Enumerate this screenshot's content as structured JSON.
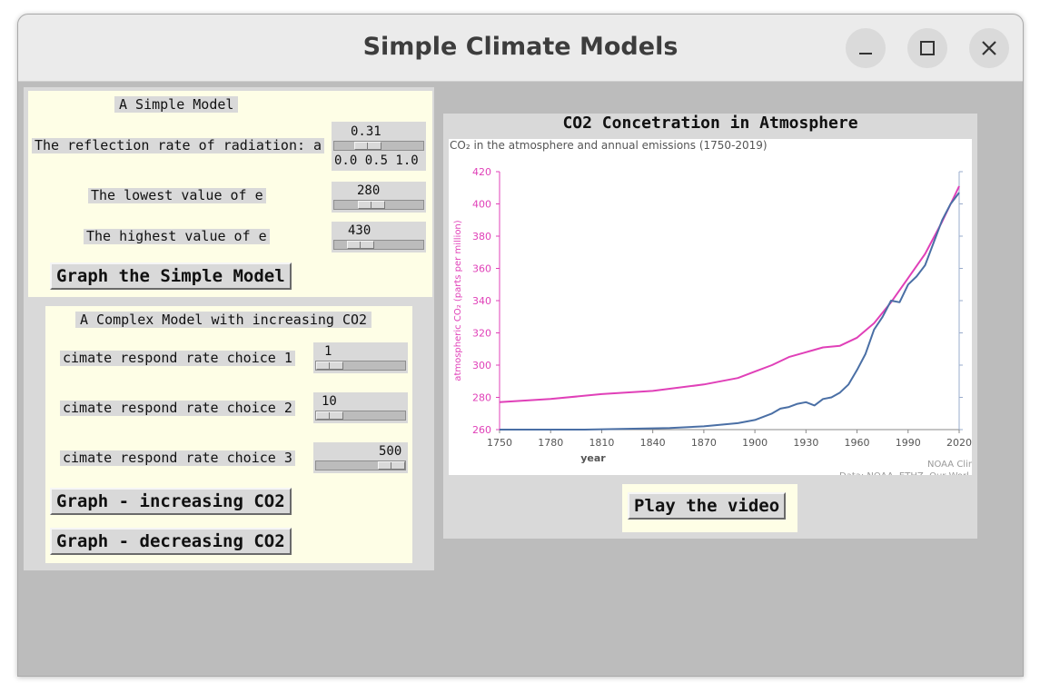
{
  "window": {
    "title": "Simple Climate Models"
  },
  "controls": {
    "minimize": "minimize-icon",
    "maximize": "maximize-icon",
    "close": "close-icon"
  },
  "simple_model": {
    "heading": "A Simple Model",
    "reflection": {
      "label": "The reflection rate of radiation: a",
      "value": "0.31",
      "ticks": "0.0 0.5 1.0",
      "fraction": 0.31
    },
    "lowest_e": {
      "label": "The lowest value of e",
      "value": "280"
    },
    "highest_e": {
      "label": "The highest value of e",
      "value": "430"
    },
    "graph_button": "Graph the Simple Model"
  },
  "complex_model": {
    "heading": "A Complex Model with increasing CO2",
    "choice1": {
      "label": "cimate respond rate choice 1",
      "value": "1"
    },
    "choice2": {
      "label": "cimate respond rate choice 2",
      "value": "10"
    },
    "choice3": {
      "label": "cimate respond rate choice 3",
      "value": "500"
    },
    "increasing_button": "Graph - increasing CO2",
    "decreasing_button": "Graph - decreasing CO2"
  },
  "co2_panel": {
    "title": "CO2 Concetration in Atmosphere",
    "play_button": "Play the video"
  },
  "chart_data": {
    "type": "line",
    "title": "CO₂ in the atmosphere and annual emissions (1750-2019)",
    "xlabel": "year",
    "ylabel": "atmospheric CO₂ (parts per million)",
    "xlim": [
      1750,
      2020
    ],
    "ylim": [
      260,
      420
    ],
    "x_ticks": [
      1750,
      1780,
      1810,
      1840,
      1870,
      1900,
      1930,
      1960,
      1990,
      2020
    ],
    "y_ticks": [
      260,
      280,
      300,
      320,
      340,
      360,
      380,
      400,
      420
    ],
    "colors": {
      "concentration": "#e040b8",
      "emissions": "#4a6fa5"
    },
    "credit": [
      "NOAA Clim",
      "Data: NOAA, ETHZ, Our Worl"
    ],
    "series": [
      {
        "key": "concentration",
        "x": [
          1750,
          1780,
          1810,
          1840,
          1870,
          1890,
          1900,
          1910,
          1920,
          1930,
          1940,
          1950,
          1960,
          1970,
          1980,
          1990,
          2000,
          2010,
          2020
        ],
        "y": [
          277,
          279,
          282,
          284,
          288,
          292,
          296,
          300,
          305,
          308,
          311,
          312,
          317,
          326,
          339,
          354,
          369,
          389,
          411
        ]
      },
      {
        "key": "emissions",
        "x": [
          1750,
          1800,
          1850,
          1870,
          1890,
          1900,
          1910,
          1915,
          1920,
          1925,
          1930,
          1935,
          1940,
          1945,
          1950,
          1955,
          1960,
          1965,
          1970,
          1975,
          1980,
          1985,
          1990,
          1995,
          2000,
          2005,
          2010,
          2015,
          2020
        ],
        "y": [
          260,
          260,
          261,
          262,
          264,
          266,
          270,
          273,
          274,
          276,
          277,
          275,
          279,
          280,
          283,
          288,
          297,
          307,
          322,
          330,
          340,
          339,
          350,
          355,
          362,
          376,
          390,
          400,
          407
        ]
      }
    ]
  }
}
